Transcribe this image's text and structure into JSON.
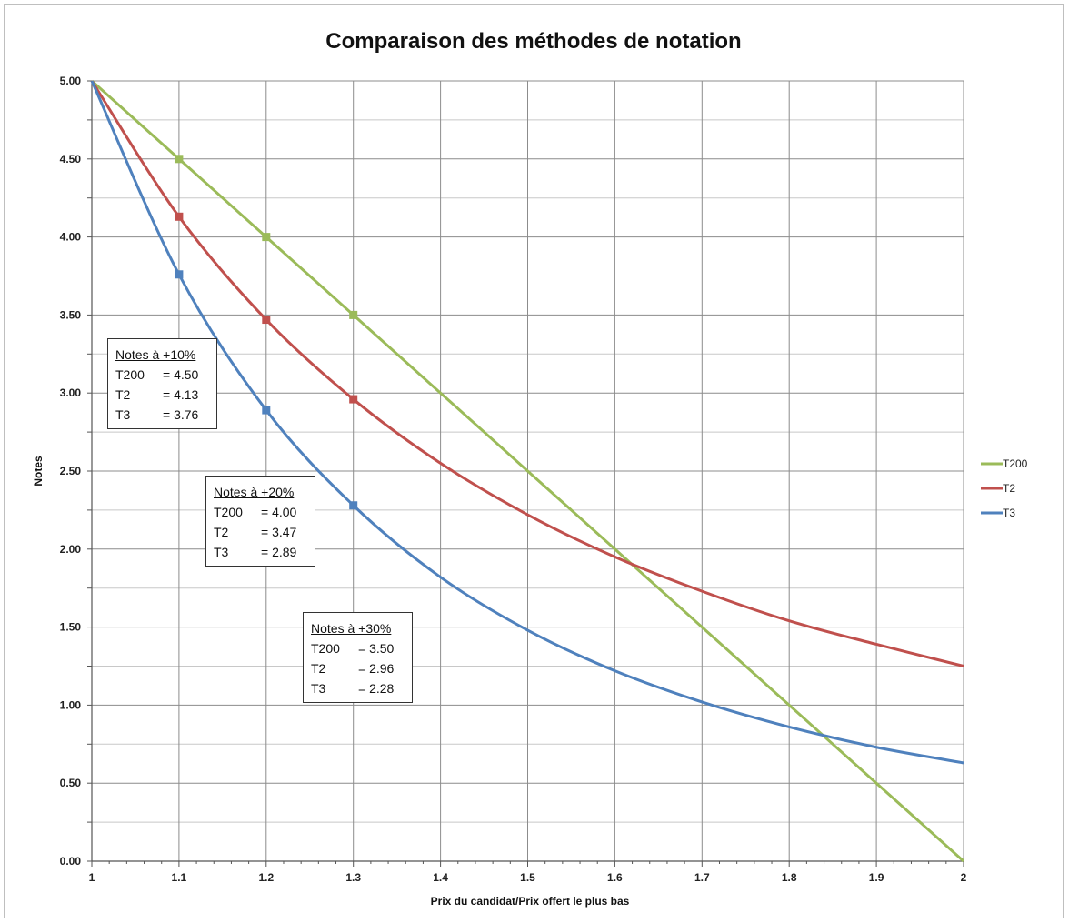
{
  "chart_data": {
    "type": "line",
    "title": "Comparaison des méthodes de notation",
    "xlabel": "Prix du candidat/Prix offert le plus bas",
    "ylabel": "Notes",
    "xlim": [
      1,
      2
    ],
    "ylim": [
      0,
      5
    ],
    "x_ticks": [
      "1",
      "1.1",
      "1.2",
      "1.3",
      "1.4",
      "1.5",
      "1.6",
      "1.7",
      "1.8",
      "1.9",
      "2"
    ],
    "y_ticks": [
      "0.00",
      "0.50",
      "1.00",
      "1.50",
      "2.00",
      "2.50",
      "3.00",
      "3.50",
      "4.00",
      "4.50",
      "5.00"
    ],
    "grid": true,
    "legend_position": "right",
    "series": [
      {
        "name": "T200",
        "color": "#9bbb59",
        "x": [
          1.0,
          1.1,
          1.2,
          1.3,
          1.4,
          1.5,
          1.6,
          1.7,
          1.8,
          1.9,
          2.0
        ],
        "values": [
          5.0,
          4.5,
          4.0,
          3.5,
          3.0,
          2.5,
          2.0,
          1.5,
          1.0,
          0.5,
          0.0
        ],
        "markers": [
          1.1,
          1.2,
          1.3
        ]
      },
      {
        "name": "T2",
        "color": "#c0504d",
        "x": [
          1.0,
          1.1,
          1.2,
          1.3,
          1.4,
          1.5,
          1.6,
          1.7,
          1.8,
          1.9,
          2.0
        ],
        "values": [
          5.0,
          4.13,
          3.47,
          2.96,
          2.55,
          2.22,
          1.95,
          1.73,
          1.54,
          1.39,
          1.25
        ],
        "markers": [
          1.1,
          1.2,
          1.3
        ]
      },
      {
        "name": "T3",
        "color": "#4f81bd",
        "x": [
          1.0,
          1.1,
          1.2,
          1.3,
          1.4,
          1.5,
          1.6,
          1.7,
          1.8,
          1.9,
          2.0
        ],
        "values": [
          5.0,
          3.76,
          2.89,
          2.28,
          1.82,
          1.48,
          1.22,
          1.02,
          0.86,
          0.73,
          0.63
        ],
        "markers": [
          1.1,
          1.2,
          1.3
        ]
      }
    ],
    "annotations": [
      {
        "title": "Notes à +10%",
        "rows": [
          [
            "T200",
            "= 4.50"
          ],
          [
            "T2",
            "= 4.13"
          ],
          [
            "T3",
            "= 3.76"
          ]
        ]
      },
      {
        "title": "Notes à +20%",
        "rows": [
          [
            "T200",
            "= 4.00"
          ],
          [
            "T2",
            "= 3.47"
          ],
          [
            "T3",
            "= 2.89"
          ]
        ]
      },
      {
        "title": "Notes à +30%",
        "rows": [
          [
            "T200",
            "= 3.50"
          ],
          [
            "T2",
            "= 2.96"
          ],
          [
            "T3",
            "= 2.28"
          ]
        ]
      }
    ]
  }
}
